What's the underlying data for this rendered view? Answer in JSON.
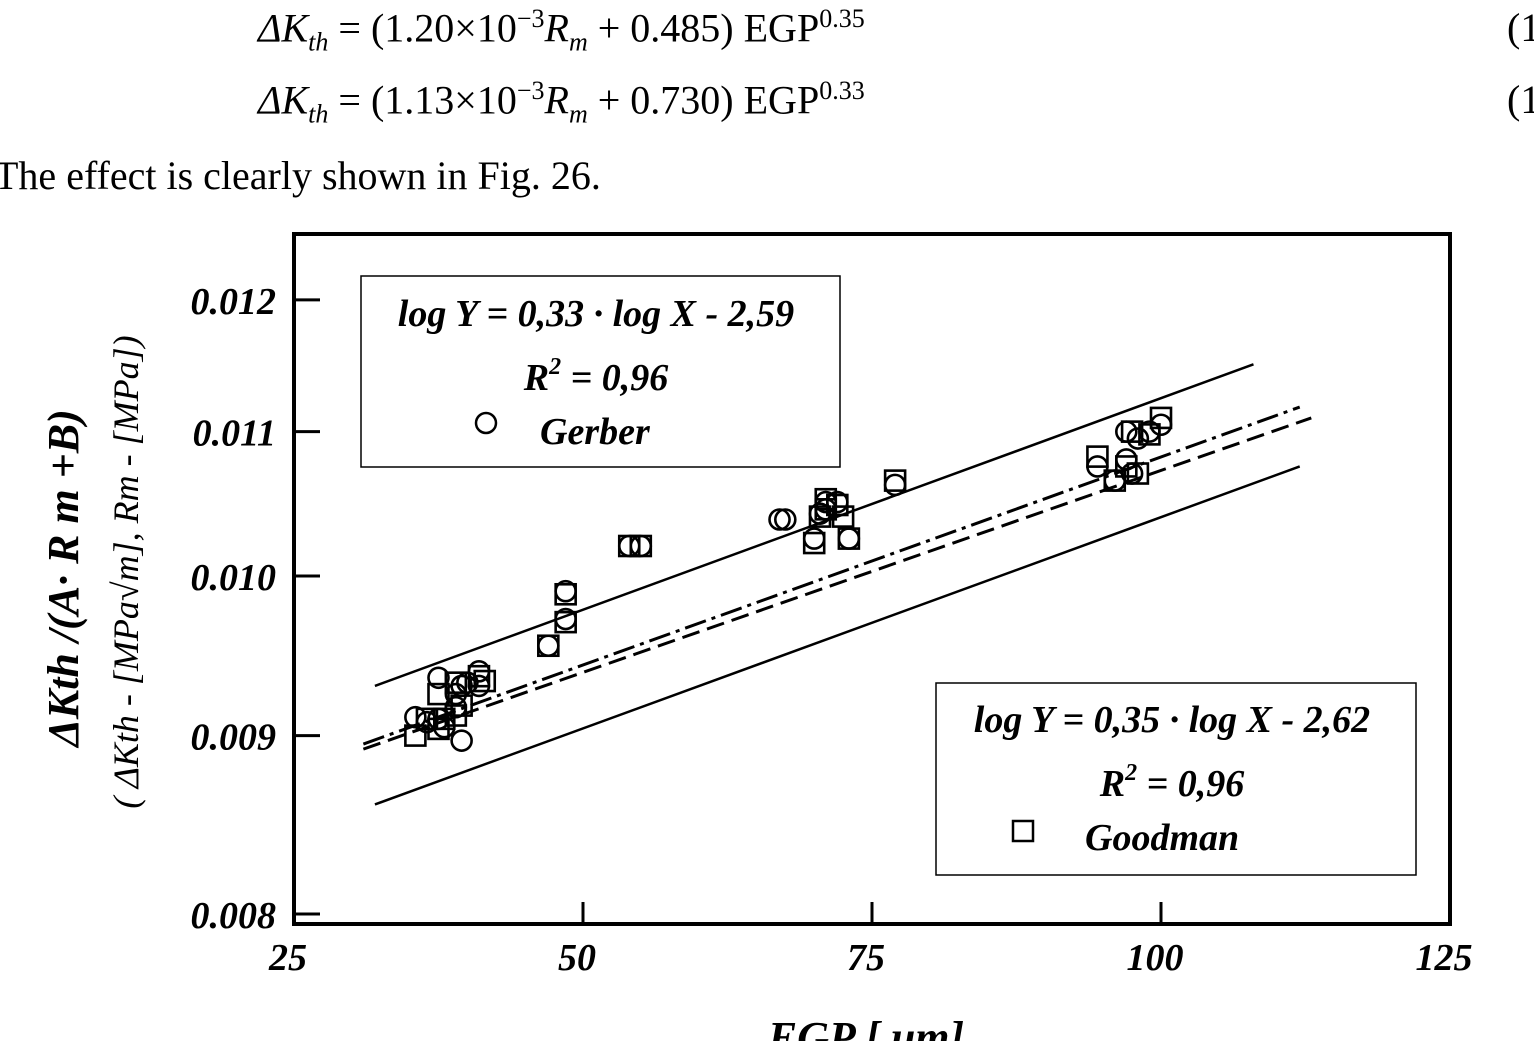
{
  "equations": [
    {
      "mantissa": "1.20",
      "exp": "−3",
      "constant": "0.485",
      "power": "0.35",
      "number": "(1"
    },
    {
      "mantissa": "1.13",
      "exp": "−3",
      "constant": "0.730",
      "power": "0.33",
      "number": "(1"
    }
  ],
  "eq_parts": {
    "lhs": "ΔK",
    "sub": "th",
    "eq_open": " = (",
    "times": "×10",
    "R": "R",
    "R_sub": "m",
    "plus": " + ",
    "close_egp": ") EGP"
  },
  "text_line": "The effect is clearly shown in Fig. 26.",
  "chart_data": {
    "type": "scatter",
    "xlabel": "EGP [ μm]",
    "ylabel_main": "ΔKth /(A· R m +B)",
    "ylabel_sub": "( ΔKth - [MPa√m], Rm - [MPa])",
    "x_ticks": [
      "25",
      "50",
      "75",
      "100",
      "125"
    ],
    "y_ticks": [
      "0.008",
      "0.009",
      "0.010",
      "0.011",
      "0.012"
    ],
    "xlim": [
      25,
      125
    ],
    "ylim": [
      0.008,
      0.0125
    ],
    "y_scale": "log",
    "legend_top": {
      "equation": "log Y = 0,33 · log X - 2,59",
      "r2_label": "R",
      "r2_sup": "2",
      "r2_value": " = 0,96",
      "series": "Gerber"
    },
    "legend_bottom": {
      "equation": "log Y = 0,35 · log X - 2,62",
      "r2_label": "R",
      "r2_sup": "2",
      "r2_value": " = 0,96",
      "series": "Goodman"
    },
    "series": [
      {
        "name": "Gerber",
        "marker": "circle",
        "points": [
          [
            35.5,
            0.00911
          ],
          [
            36.5,
            0.00908
          ],
          [
            37.5,
            0.00935
          ],
          [
            37.5,
            0.0091
          ],
          [
            38,
            0.00905
          ],
          [
            39,
            0.00917
          ],
          [
            39,
            0.00925
          ],
          [
            39.5,
            0.00897
          ],
          [
            39.5,
            0.0093
          ],
          [
            40,
            0.00932
          ],
          [
            41,
            0.00939
          ],
          [
            41,
            0.0093
          ],
          [
            47,
            0.00955
          ],
          [
            48.5,
            0.0099
          ],
          [
            48.5,
            0.00972
          ],
          [
            54,
            0.0102
          ],
          [
            55,
            0.0102
          ],
          [
            67.5,
            0.01038
          ],
          [
            67,
            0.01038
          ],
          [
            70,
            0.01025
          ],
          [
            70.5,
            0.01042
          ],
          [
            71,
            0.0105
          ],
          [
            71,
            0.01045
          ],
          [
            72,
            0.0105
          ],
          [
            73,
            0.01025
          ],
          [
            77,
            0.01062
          ],
          [
            94.5,
            0.01075
          ],
          [
            96,
            0.01065
          ],
          [
            97,
            0.011
          ],
          [
            97,
            0.0108
          ],
          [
            97.5,
            0.0107
          ],
          [
            98,
            0.01095
          ],
          [
            99,
            0.011
          ],
          [
            100,
            0.01105
          ]
        ]
      },
      {
        "name": "Goodman",
        "marker": "square",
        "points": [
          [
            35.5,
            0.009
          ],
          [
            36.5,
            0.0091
          ],
          [
            37.5,
            0.00904
          ],
          [
            37.5,
            0.00925
          ],
          [
            38,
            0.0091
          ],
          [
            39,
            0.00912
          ],
          [
            39,
            0.00932
          ],
          [
            39.5,
            0.00918
          ],
          [
            41,
            0.00936
          ],
          [
            41.5,
            0.00933
          ],
          [
            47,
            0.00955
          ],
          [
            48.5,
            0.0097
          ],
          [
            48.5,
            0.00988
          ],
          [
            54,
            0.0102
          ],
          [
            55,
            0.0102
          ],
          [
            70,
            0.01022
          ],
          [
            70.5,
            0.0104
          ],
          [
            71,
            0.01052
          ],
          [
            71,
            0.01045
          ],
          [
            72,
            0.01048
          ],
          [
            72.5,
            0.0104
          ],
          [
            73,
            0.01025
          ],
          [
            77,
            0.01065
          ],
          [
            94.5,
            0.01082
          ],
          [
            96,
            0.01065
          ],
          [
            97,
            0.01075
          ],
          [
            97.5,
            0.011
          ],
          [
            98,
            0.0107
          ],
          [
            99,
            0.01098
          ],
          [
            100,
            0.0111
          ]
        ]
      }
    ],
    "fit_lines": [
      {
        "name": "upper-band",
        "style": "solid",
        "x": [
          32,
          108
        ],
        "y": [
          0.0093,
          0.0115
        ]
      },
      {
        "name": "lower-band",
        "style": "solid",
        "x": [
          32,
          112
        ],
        "y": [
          0.0086,
          0.01075
        ]
      },
      {
        "name": "gerber-fit",
        "style": "dash",
        "x": [
          31,
          113
        ],
        "y": [
          0.00892,
          0.0111
        ]
      },
      {
        "name": "goodman-fit",
        "style": "dashdot",
        "x": [
          31,
          112
        ],
        "y": [
          0.00895,
          0.01118
        ]
      }
    ]
  }
}
